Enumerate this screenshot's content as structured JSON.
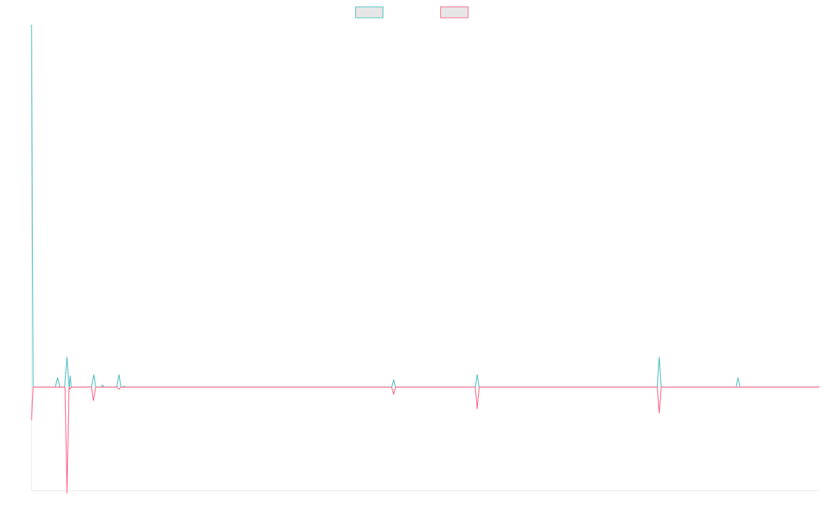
{
  "chart_data": {
    "type": "line",
    "title": "",
    "xlabel": "",
    "ylabel": "",
    "grid": false,
    "legend": "top-center",
    "x_range": [
      0,
      100
    ],
    "y_range": [
      -200,
      700
    ],
    "series": [
      {
        "name": "",
        "color": "#4bc0c0",
        "legend_fill": "#e6e6e6",
        "points": [
          [
            0,
            700
          ],
          [
            0.2,
            0
          ],
          [
            3.0,
            0
          ],
          [
            3.3,
            18
          ],
          [
            3.6,
            0
          ],
          [
            4.2,
            0
          ],
          [
            4.5,
            58
          ],
          [
            4.75,
            0
          ],
          [
            4.8,
            0
          ],
          [
            4.9,
            22
          ],
          [
            5.05,
            0
          ],
          [
            5.3,
            0
          ],
          [
            7.6,
            0
          ],
          [
            7.9,
            24
          ],
          [
            8.15,
            0
          ],
          [
            8.8,
            0
          ],
          [
            9.0,
            4
          ],
          [
            9.2,
            0
          ],
          [
            10.8,
            0
          ],
          [
            11.1,
            24
          ],
          [
            11.35,
            0
          ],
          [
            11.6,
            0
          ],
          [
            11.75,
            2
          ],
          [
            11.9,
            0
          ],
          [
            45.7,
            0
          ],
          [
            45.95,
            14
          ],
          [
            46.2,
            0
          ],
          [
            56.3,
            0
          ],
          [
            56.55,
            24
          ],
          [
            56.8,
            0
          ],
          [
            79.4,
            0
          ],
          [
            79.65,
            58
          ],
          [
            79.9,
            0
          ],
          [
            89.4,
            0
          ],
          [
            89.65,
            18
          ],
          [
            89.9,
            0
          ],
          [
            100,
            0
          ]
        ]
      },
      {
        "name": "",
        "color": "#ff6384",
        "legend_fill": "#e6e6e6",
        "points": [
          [
            0,
            -64
          ],
          [
            0.2,
            0
          ],
          [
            4.25,
            0
          ],
          [
            4.5,
            -205
          ],
          [
            4.75,
            0
          ],
          [
            4.9,
            -4
          ],
          [
            5.05,
            0
          ],
          [
            7.6,
            0
          ],
          [
            7.85,
            -26
          ],
          [
            8.15,
            0
          ],
          [
            10.8,
            0
          ],
          [
            11.1,
            -4
          ],
          [
            11.35,
            0
          ],
          [
            45.7,
            0
          ],
          [
            45.95,
            -14
          ],
          [
            46.2,
            0
          ],
          [
            56.3,
            0
          ],
          [
            56.55,
            -42
          ],
          [
            56.8,
            0
          ],
          [
            79.4,
            0
          ],
          [
            79.65,
            -50
          ],
          [
            79.9,
            0
          ],
          [
            100,
            0
          ]
        ]
      }
    ]
  }
}
